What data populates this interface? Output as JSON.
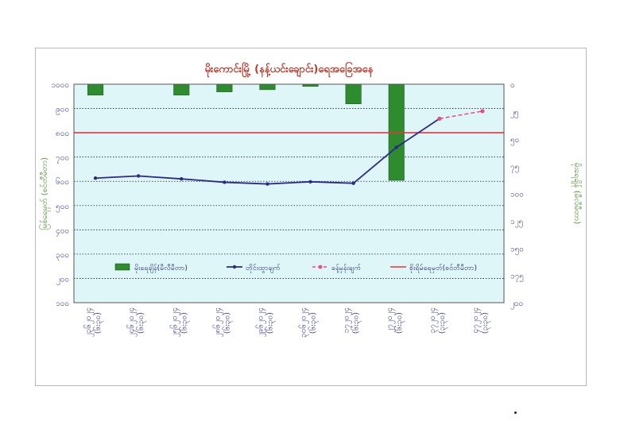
{
  "chart_data": {
    "type": "bar+line",
    "title": "မိုးကောင်းမြို့ (နန့်ယင်းချောင်း)ရေအခြေအနေ",
    "ylabel_left": "မြစ်ရေမှတ် (စင်တီမီတာ)",
    "ylabel_right": "မိုးရေချိန် (မီလီမီတာ)",
    "categories": [
      {
        "line1": "၂၃၆၂၀၂၄",
        "line2": "(၆း၃၀)"
      },
      {
        "line1": "၂၄၆၂၀၂၄",
        "line2": "(၆း၃၀)"
      },
      {
        "line1": "၂၅၆၂၀၂၄",
        "line2": "(၆း၃၀)"
      },
      {
        "line1": "၂၈၆၂၀၂၄",
        "line2": "(၆း၃၀)"
      },
      {
        "line1": "၂၉၆၂၀၂၄",
        "line2": "(၆း၃၀)"
      },
      {
        "line1": "၃၀၆၂၀၂၄",
        "line2": "(၆း၃၀)"
      },
      {
        "line1": "၁၇၂၀၂၄",
        "line2": "(၆း၃၀)"
      },
      {
        "line1": "၂၇၂၀၂၄",
        "line2": "(၆း၃၀)"
      },
      {
        "line1": "၃၇၂၀၂၄",
        "line2": "(၃း၃၀)"
      },
      {
        "line1": "၄၇၂၀၂၄",
        "line2": "(၃း၃၀)"
      }
    ],
    "left_axis": {
      "min": 100,
      "max": 1000,
      "ticks": [
        "၁၀၀",
        "၂၀၀",
        "၃၀၀",
        "၄၀၀",
        "၅၀၀",
        "၆၀၀",
        "၇၀၀",
        "၈၀၀",
        "၉၀၀",
        "၁၀၀၀"
      ]
    },
    "right_axis": {
      "min": 0,
      "max": 200,
      "inverted": true,
      "ticks": [
        "၀",
        "၂၅",
        "၅၀",
        "၇၅",
        "၁၀၀",
        "၁၂၅",
        "၁၅၀",
        "၁၇၅",
        "၂၀၀"
      ]
    },
    "series": [
      {
        "name": "မိုးရေချိန်(မီလီမီတာ)",
        "kind": "bar",
        "axis": "right",
        "color": "#2e8b2e",
        "values": [
          10,
          0,
          10,
          7,
          5,
          2,
          18,
          88,
          null,
          null
        ]
      },
      {
        "name": "တိုင်းထွာချက်",
        "kind": "line",
        "axis": "left",
        "color": "#2a2a8c",
        "values": [
          613,
          622,
          610,
          596,
          589,
          598,
          592,
          740,
          858,
          null
        ]
      },
      {
        "name": "ခန့်မှန်းချက်",
        "kind": "line-dashed",
        "axis": "left",
        "color": "#e84a8a",
        "values": [
          null,
          null,
          null,
          null,
          null,
          null,
          null,
          null,
          858,
          889
        ]
      }
    ],
    "reference_line": {
      "name": "စိုးရိမ်ရေမှတ်(စင်တီမီတာ)",
      "value": 800,
      "color": "#e8323c"
    },
    "legend_position": "bottom-inside",
    "grid": "horizontal-dotted",
    "plot_background": "#dff6f9"
  }
}
